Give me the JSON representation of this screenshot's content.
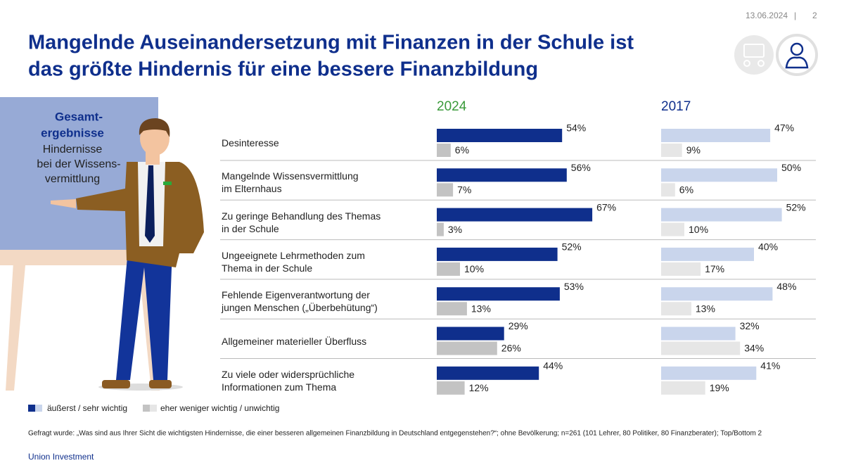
{
  "header": {
    "date": "13.06.2024",
    "separator": "|",
    "page": "2",
    "title": [
      "Mangelnde Auseinandersetzung mit Finanzen in der Schule ist",
      "das größte Hindernis für eine bessere Finanzbildung"
    ]
  },
  "board": {
    "heading": [
      "Gesamt-",
      "ergebnisse"
    ],
    "text": [
      "Hindernisse",
      "bei der Wissens-",
      "vermittlung"
    ]
  },
  "categories": [
    "Desinteresse",
    "Mangelnde Wissensvermittlung\nim Elternhaus",
    "Zu geringe Behandlung des Themas\nin der Schule",
    "Ungeeignete Lehrmethoden zum\nThema in der Schule",
    "Fehlende Eigenverantwortung der\njungen Menschen („Überbehütung“)",
    "Allgemeiner materieller Überfluss",
    "Zu viele oder widersprüchliche\nInformationen zum Thema"
  ],
  "chart_data": [
    {
      "type": "bar",
      "orientation": "horizontal",
      "title": "2024",
      "title_color": "#3a9a3a",
      "series": [
        {
          "name": "äußerst / sehr wichtig",
          "color": "#0f2f8c",
          "values": [
            54,
            56,
            67,
            52,
            53,
            29,
            44
          ],
          "value_labels": [
            "54%",
            "56%",
            "67%",
            "52%",
            "53%",
            "29%",
            "44%"
          ]
        },
        {
          "name": "eher weniger wichtig / unwichtig",
          "color": "#c3c3c3",
          "values": [
            6,
            7,
            3,
            10,
            13,
            26,
            12
          ],
          "value_labels": [
            "6%",
            "7%",
            "3%",
            "10%",
            "13%",
            "26%",
            "12%"
          ]
        }
      ]
    },
    {
      "type": "bar",
      "orientation": "horizontal",
      "title": "2017",
      "title_color": "#0f2f8c",
      "series": [
        {
          "color": "#c9d5ec",
          "values": [
            47,
            50,
            52,
            40,
            48,
            32,
            41
          ],
          "value_labels": [
            "47%",
            "50%",
            "52%",
            "40%",
            "48%",
            "32%",
            "41%"
          ]
        },
        {
          "color": "#e6e6e6",
          "values": [
            9,
            6,
            10,
            17,
            13,
            34,
            19
          ],
          "value_labels": [
            "9%",
            "6%",
            "10%",
            "17%",
            "13%",
            "34%",
            "19%"
          ]
        }
      ]
    }
  ],
  "footnote": "Gefragt wurde: „Was sind aus Ihrer Sicht die wichtigsten Hindernisse, die einer besseren allgemeinen Finanzbildung in Deutschland entgegenstehen?“; ohne Bevölkerung; n=261 (101 Lehrer, 80 Politiker,  80 Finanzberater); Top/Bottom 2",
  "brand": "Union Investment"
}
